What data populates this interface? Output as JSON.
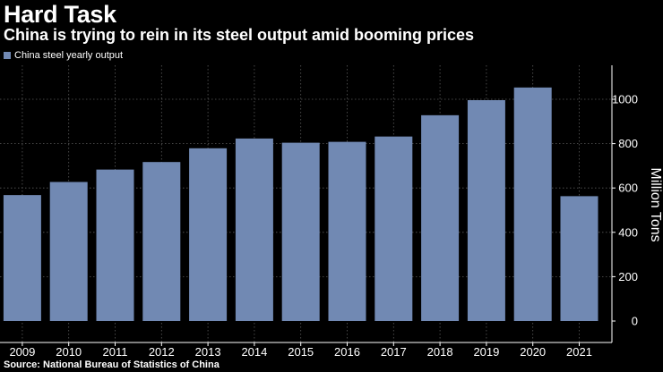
{
  "title": "Hard Task",
  "subtitle": "China is trying to rein in its steel output amid booming prices",
  "source": "Source: National Bureau of Statistics of China",
  "colors": {
    "background": "#000000",
    "bar": "#7189b3",
    "text": "#ffffff",
    "grid": "#5a5a5a"
  },
  "chart_data": {
    "type": "bar",
    "categories": [
      "2009",
      "2010",
      "2011",
      "2012",
      "2013",
      "2014",
      "2015",
      "2016",
      "2017",
      "2018",
      "2019",
      "2020",
      "2021"
    ],
    "series": [
      {
        "name": "China steel yearly output",
        "values": [
          568,
          627,
          683,
          717,
          779,
          823,
          804,
          808,
          832,
          928,
          996,
          1053,
          563
        ]
      }
    ],
    "xlabel": "",
    "ylabel": "Million Tons",
    "ylim": [
      0,
      1150
    ],
    "yticks": [
      0,
      200,
      400,
      600,
      800,
      1000
    ],
    "y_axis_position": "right",
    "grid": true,
    "legend": "top-left"
  }
}
